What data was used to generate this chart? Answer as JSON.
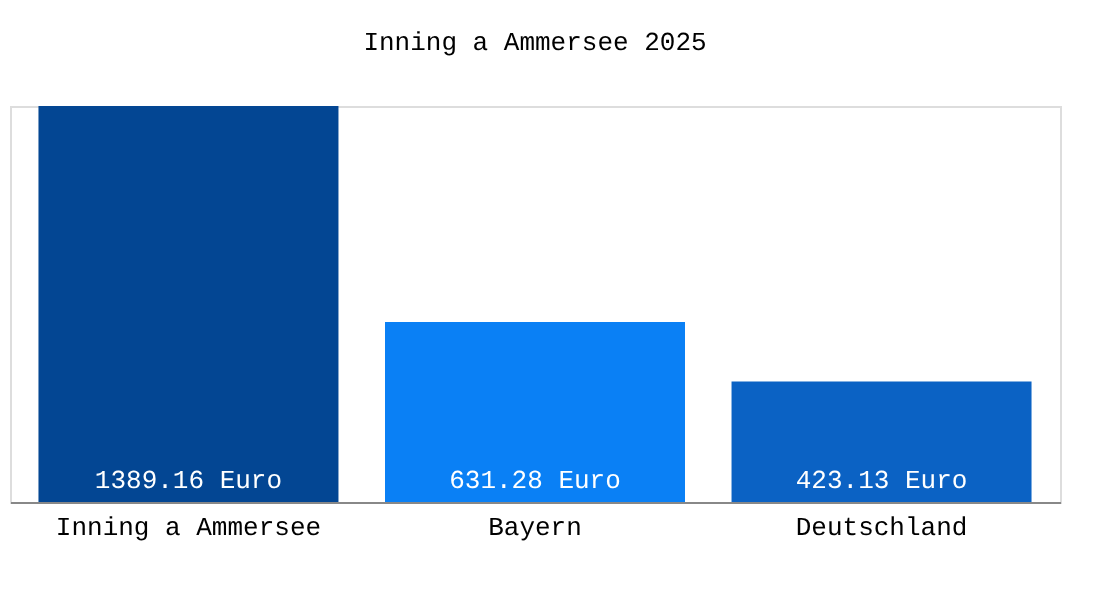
{
  "chart_data": {
    "type": "bar",
    "title": "Inning a Ammersee 2025",
    "categories": [
      "Inning a Ammersee",
      "Bayern",
      "Deutschland"
    ],
    "values": [
      1389.16,
      631.28,
      423.13
    ],
    "colors": [
      "#034693",
      "#0a80f5",
      "#0b62c4"
    ],
    "value_labels": [
      "1389.16 Euro",
      "631.28 Euro",
      "423.13 Euro"
    ],
    "grid": false,
    "legend": false
  }
}
